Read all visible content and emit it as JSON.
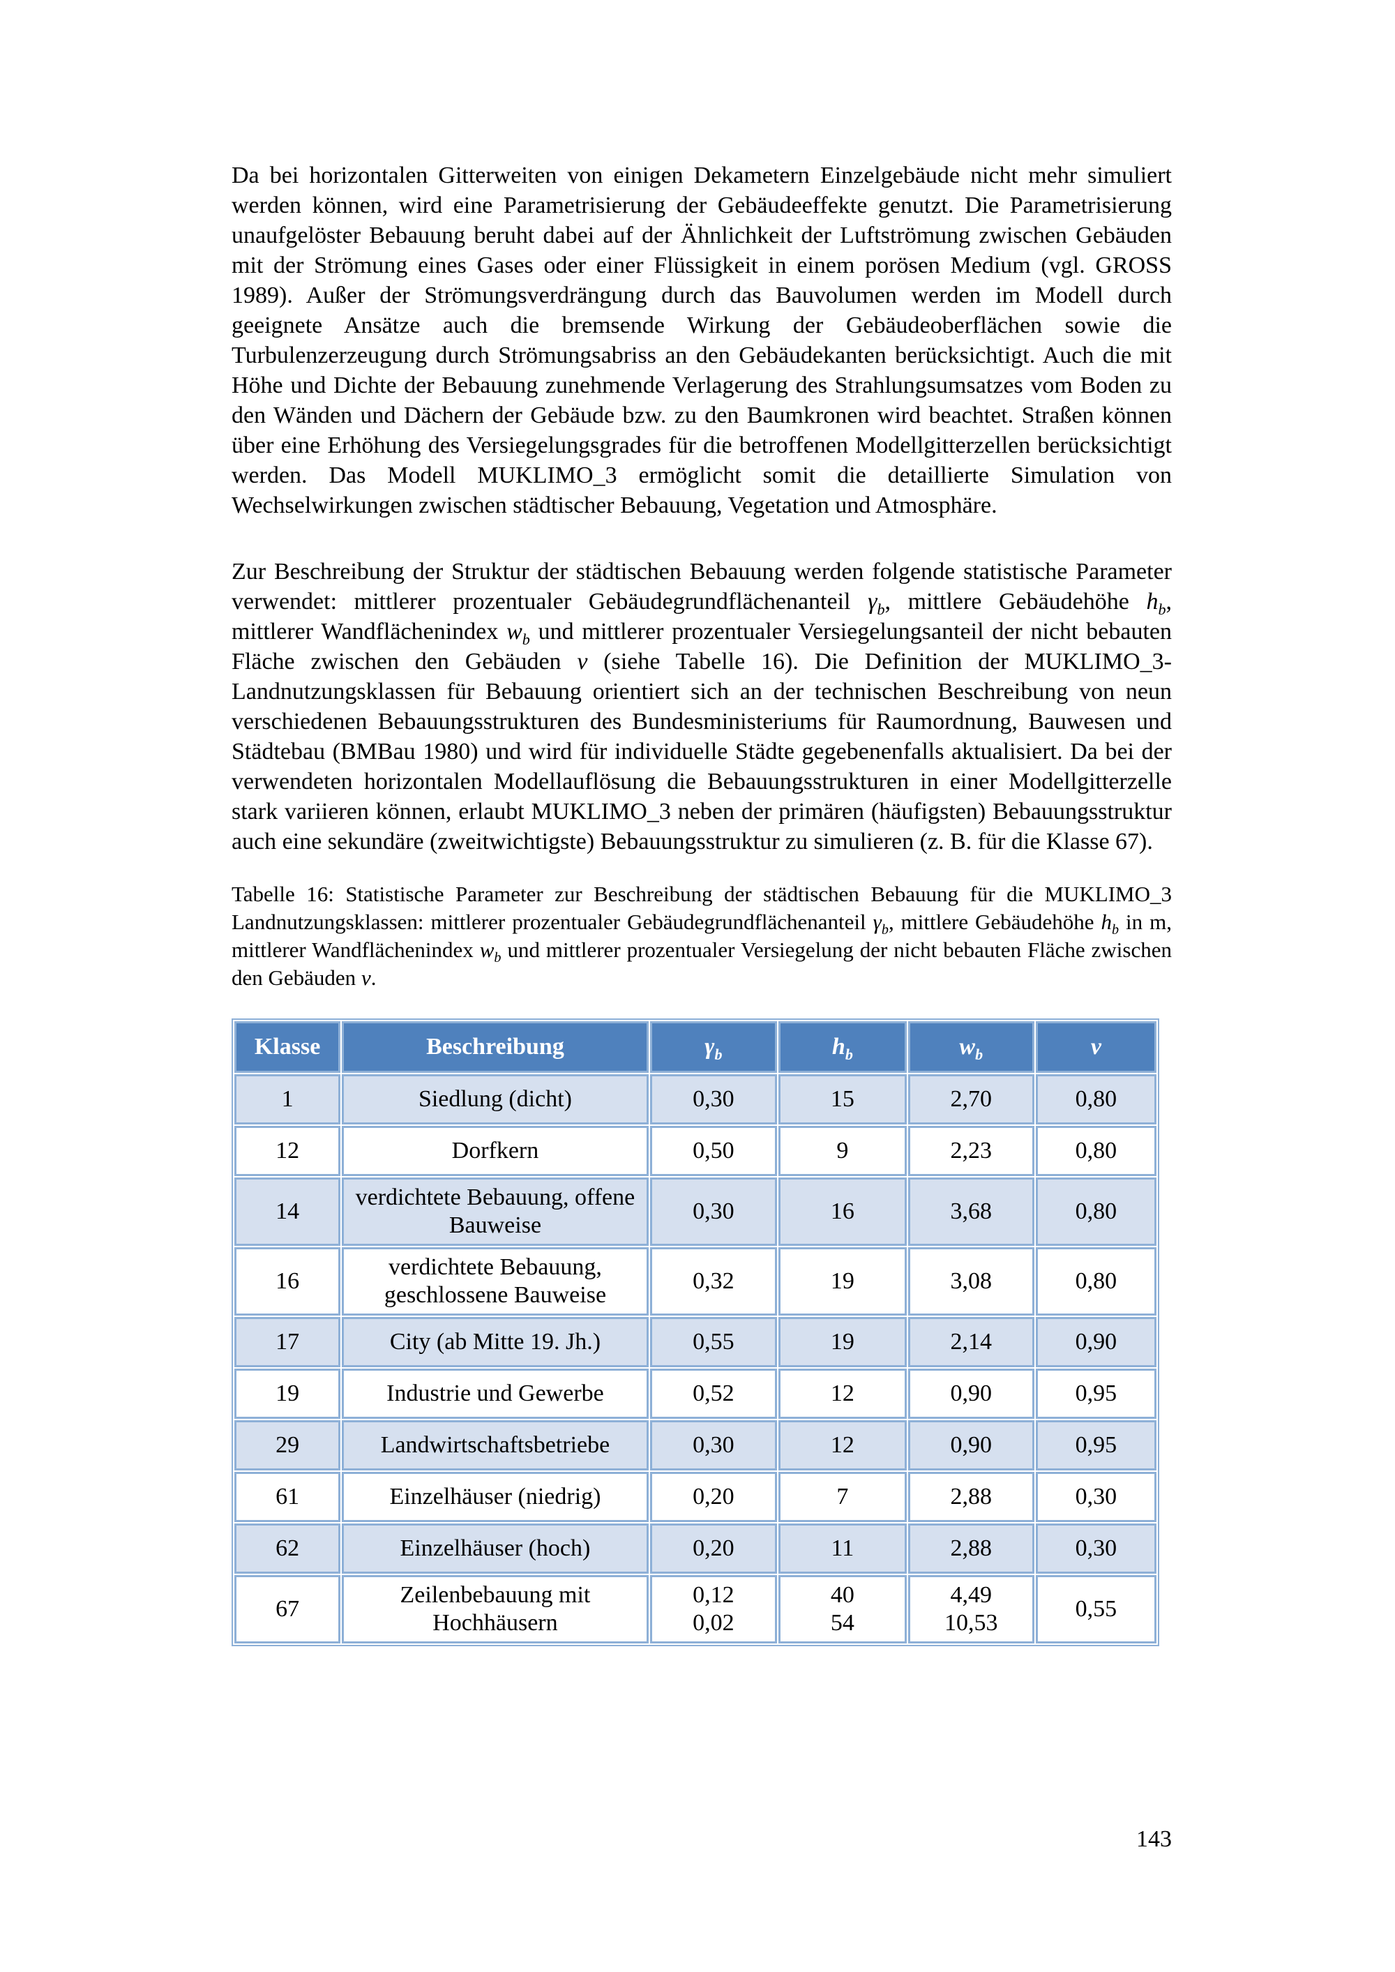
{
  "content": {
    "paragraph1": [
      {
        "t": "Da bei horizontalen Gitterweiten von einigen Dekametern Einzelgebäude nicht mehr simuliert werden können, wird eine Parametrisierung der Gebäudeeffekte genutzt. Die Parametrisierung unaufgelöster Bebauung beruht dabei auf der Ähnlichkeit der Luftströmung zwischen Gebäuden mit der Strömung eines Gases oder einer Flüssigkeit in einem porösen Medium (vgl. GROSS 1989). Außer der Strömungsverdrängung durch das Bauvolumen werden im Modell durch geeignete Ansätze auch die bremsende Wirkung der Gebäudeoberflächen sowie die Turbulenzerzeugung durch Strömungsabriss an den Gebäudekanten berücksichtigt. Auch die mit Höhe und Dichte der Bebauung zunehmende Verlagerung des Strahlungsumsatzes vom Boden zu den Wänden und Dächern der Gebäude bzw. zu den Baumkronen wird beachtet. Straßen können über eine Erhöhung des Versiegelungsgrades für die betroffenen Modellgitterzellen berücksichtigt werden. Das Modell MUKLIMO_3 ermöglicht somit die detaillierte Simulation von Wechselwirkungen zwischen städtischer Bebauung, Vegetation und Atmosphäre."
      }
    ],
    "paragraph2": [
      {
        "t": "Zur Beschreibung der Struktur der städtischen Bebauung werden folgende statistische Parameter verwendet: mittlerer prozentualer Gebäudegrundflächenanteil "
      },
      {
        "t": "γ",
        "math": true,
        "sub": "b"
      },
      {
        "t": ", mittlere Gebäudehöhe "
      },
      {
        "t": "h",
        "math": true,
        "sub": "b"
      },
      {
        "t": ", mittlerer Wandflächenindex "
      },
      {
        "t": "w",
        "math": true,
        "sub": "b"
      },
      {
        "t": " und mittlerer prozentualer Versiegelungsanteil der nicht bebauten Fläche zwischen den Gebäuden "
      },
      {
        "t": "v",
        "math": true
      },
      {
        "t": " (siehe Tabelle 16). Die Definition der MUKLIMO_3-Landnutzungsklassen für Bebauung orientiert sich an der technischen Beschreibung von neun verschiedenen Bebauungsstrukturen des Bundesministeriums für Raumordnung, Bauwesen und Städtebau (BMBau 1980) und wird für individuelle Städte gegebenenfalls aktualisiert. Da bei der verwendeten horizontalen Modellauflösung die Bebauungsstrukturen in einer Modellgitterzelle stark variieren können, erlaubt MUKLIMO_3 neben der primären (häufigsten) Bebauungsstruktur auch eine sekundäre (zweitwichtigste) Bebauungsstruktur zu simulieren (z. B. für die Klasse 67)."
      }
    ],
    "caption": [
      {
        "t": "Tabelle 16: Statistische Parameter zur Beschreibung der städtischen Bebauung für die MUKLIMO_3 Landnutzungsklassen: mittlerer prozentualer Gebäudegrundflächenanteil "
      },
      {
        "t": "γ",
        "math": true,
        "sub": "b"
      },
      {
        "t": ", mittlere Gebäudehöhe "
      },
      {
        "t": "h",
        "math": true,
        "sub": "b"
      },
      {
        "t": " in m, mittlerer Wandflächenindex "
      },
      {
        "t": "w",
        "math": true,
        "sub": "b"
      },
      {
        "t": " und mittlerer prozentualer Versiegelung der nicht bebauten Fläche zwischen den Gebäuden "
      },
      {
        "t": "v",
        "math": true
      },
      {
        "t": "."
      }
    ],
    "page_number": "143"
  },
  "table": {
    "headers": [
      {
        "name": "klasse",
        "t": "Klasse"
      },
      {
        "name": "beschreibung",
        "t": "Beschreibung"
      },
      {
        "name": "gamma-b",
        "t": "γ",
        "math": true,
        "sub": "b"
      },
      {
        "name": "h-b",
        "t": "h",
        "math": true,
        "sub": "b"
      },
      {
        "name": "w-b",
        "t": "w",
        "math": true,
        "sub": "b"
      },
      {
        "name": "v",
        "t": "v",
        "math": true
      }
    ],
    "rows": [
      {
        "klasse": "1",
        "beschreibung": "Siedlung (dicht)",
        "gamma": "0,30",
        "h": "15",
        "w": "2,70",
        "v": "0,80"
      },
      {
        "klasse": "12",
        "beschreibung": "Dorfkern",
        "gamma": "0,50",
        "h": "9",
        "w": "2,23",
        "v": "0,80"
      },
      {
        "klasse": "14",
        "beschreibung": "verdichtete Bebauung, offene Bauweise",
        "gamma": "0,30",
        "h": "16",
        "w": "3,68",
        "v": "0,80"
      },
      {
        "klasse": "16",
        "beschreibung": "verdichtete Bebauung, geschlossene Bauweise",
        "gamma": "0,32",
        "h": "19",
        "w": "3,08",
        "v": "0,80"
      },
      {
        "klasse": "17",
        "beschreibung": "City (ab Mitte 19. Jh.)",
        "gamma": "0,55",
        "h": "19",
        "w": "2,14",
        "v": "0,90"
      },
      {
        "klasse": "19",
        "beschreibung": "Industrie und Gewerbe",
        "gamma": "0,52",
        "h": "12",
        "w": "0,90",
        "v": "0,95"
      },
      {
        "klasse": "29",
        "beschreibung": "Landwirtschaftsbetriebe",
        "gamma": "0,30",
        "h": "12",
        "w": "0,90",
        "v": "0,95"
      },
      {
        "klasse": "61",
        "beschreibung": "Einzelhäuser (niedrig)",
        "gamma": "0,20",
        "h": "7",
        "w": "2,88",
        "v": "0,30"
      },
      {
        "klasse": "62",
        "beschreibung": "Einzelhäuser (hoch)",
        "gamma": "0,20",
        "h": "11",
        "w": "2,88",
        "v": "0,30"
      },
      {
        "klasse": "67",
        "beschreibung": "Zeilenbebauung mit Hochhäusern",
        "gamma": "0,12\n0,02",
        "h": "40\n54",
        "w": "4,49\n10,53",
        "v": "0,55"
      }
    ],
    "colors": {
      "header_bg": "#4f81bd",
      "header_text": "#ffffff",
      "row_shaded": "#d6e0ef",
      "row_plain": "#ffffff",
      "border": "#8eb0d7"
    }
  }
}
